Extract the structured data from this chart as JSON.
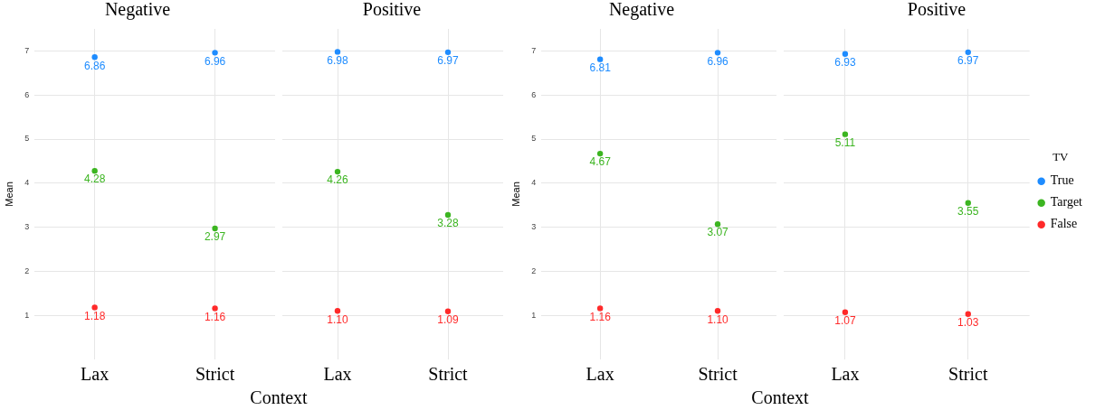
{
  "chart_data": [
    {
      "type": "scatter",
      "title": "Negative",
      "ylabel": "Mean",
      "xlabel": "Context",
      "categories": [
        "Lax",
        "Strict"
      ],
      "ylim": [
        0,
        7.5
      ],
      "yticks": [
        1,
        2,
        3,
        4,
        5,
        6,
        7
      ],
      "grid": true,
      "marker": "circle",
      "legend": false,
      "series": [
        {
          "color": "#1e8cff",
          "values": [
            6.86,
            6.96
          ],
          "value_labels": [
            "6.86",
            "6.96"
          ]
        },
        {
          "color": "#3cb521",
          "values": [
            4.28,
            2.97
          ],
          "value_labels": [
            "4.28",
            "2.97"
          ]
        },
        {
          "color": "#ff2a2a",
          "values": [
            1.18,
            1.16
          ],
          "value_labels": [
            "1.18",
            "1.16"
          ]
        }
      ]
    },
    {
      "type": "scatter",
      "title": "Positive",
      "categories": [
        "Lax",
        "Strict"
      ],
      "ylim": [
        0,
        7.5
      ],
      "yticks": [
        1,
        2,
        3,
        4,
        5,
        6,
        7
      ],
      "grid": true,
      "marker": "circle",
      "legend": false,
      "tick_labels": "x",
      "series": [
        {
          "color": "#1e8cff",
          "values": [
            6.98,
            6.97
          ],
          "value_labels": [
            "6.98",
            "6.97"
          ]
        },
        {
          "color": "#3cb521",
          "values": [
            4.26,
            3.28
          ],
          "value_labels": [
            "4.26",
            "3.28"
          ]
        },
        {
          "color": "#ff2a2a",
          "values": [
            1.1,
            1.09
          ],
          "value_labels": [
            "1.10",
            "1.09"
          ]
        }
      ]
    },
    {
      "type": "scatter",
      "title": "Negative",
      "ylabel": "Mean",
      "xlabel": "Context",
      "categories": [
        "Lax",
        "Strict"
      ],
      "ylim": [
        0,
        7.5
      ],
      "yticks": [
        1,
        2,
        3,
        4,
        5,
        6,
        7
      ],
      "grid": true,
      "marker": "circle",
      "legend": false,
      "series": [
        {
          "color": "#1e8cff",
          "values": [
            6.81,
            6.96
          ],
          "value_labels": [
            "6.81",
            "6.96"
          ]
        },
        {
          "color": "#3cb521",
          "values": [
            4.67,
            3.07
          ],
          "value_labels": [
            "4.67",
            "3.07"
          ]
        },
        {
          "color": "#ff2a2a",
          "values": [
            1.16,
            1.1
          ],
          "value_labels": [
            "1.16",
            "1.10"
          ]
        }
      ]
    },
    {
      "type": "scatter",
      "title": "Positive",
      "categories": [
        "Lax",
        "Strict"
      ],
      "ylim": [
        0,
        7.5
      ],
      "yticks": [
        1,
        2,
        3,
        4,
        5,
        6,
        7
      ],
      "grid": true,
      "marker": "circle",
      "legend": "right",
      "legend_title": "TV",
      "tick_labels": "x",
      "series": [
        {
          "name": "True",
          "color": "#1e8cff",
          "values": [
            6.93,
            6.97
          ],
          "value_labels": [
            "6.93",
            "6.97"
          ]
        },
        {
          "name": "Target",
          "color": "#3cb521",
          "values": [
            5.11,
            3.55
          ],
          "value_labels": [
            "5.11",
            "3.55"
          ]
        },
        {
          "name": "False",
          "color": "#ff2a2a",
          "values": [
            1.07,
            1.03
          ],
          "value_labels": [
            "1.07",
            "1.03"
          ]
        }
      ]
    }
  ]
}
